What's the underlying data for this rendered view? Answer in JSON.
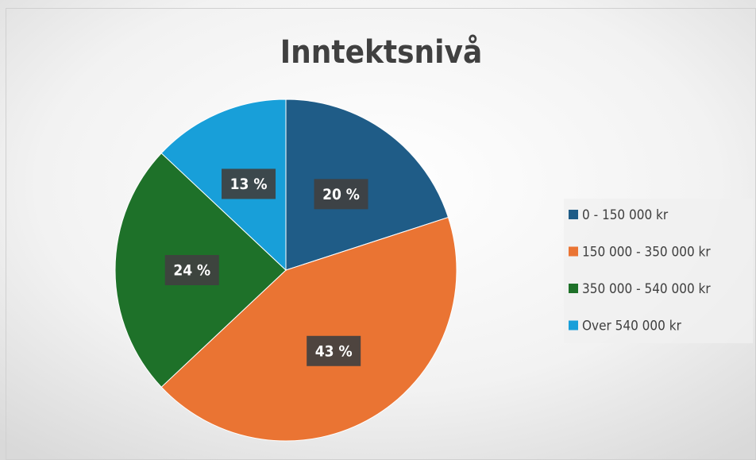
{
  "chart_data": {
    "type": "pie",
    "title": "Inntektsnivå",
    "categories": [
      "0 - 150 000 kr",
      "150 000 - 350 000 kr",
      "350 000 - 540 000 kr",
      "Over 540 000 kr"
    ],
    "values": [
      20,
      43,
      24,
      13
    ],
    "value_labels": [
      "20 %",
      "43 %",
      "24 %",
      "13 %"
    ],
    "colors": [
      "#1f5c87",
      "#ea7433",
      "#1e7129",
      "#189fd9"
    ],
    "legend": "right"
  }
}
